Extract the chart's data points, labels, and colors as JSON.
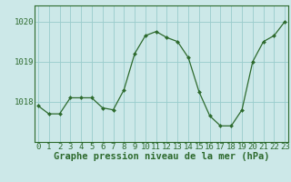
{
  "hours": [
    0,
    1,
    2,
    3,
    4,
    5,
    6,
    7,
    8,
    9,
    10,
    11,
    12,
    13,
    14,
    15,
    16,
    17,
    18,
    19,
    20,
    21,
    22,
    23
  ],
  "pressure": [
    1017.9,
    1017.7,
    1017.7,
    1018.1,
    1018.1,
    1018.1,
    1017.85,
    1017.8,
    1018.3,
    1019.2,
    1019.65,
    1019.75,
    1019.6,
    1019.5,
    1019.1,
    1018.25,
    1017.65,
    1017.4,
    1017.4,
    1017.8,
    1019.0,
    1019.5,
    1019.65,
    1020.0
  ],
  "line_color": "#2d6a2d",
  "marker": "D",
  "marker_size": 2.0,
  "bg_color": "#cce8e8",
  "grid_color": "#99cccc",
  "ylabel_ticks": [
    1018,
    1019,
    1020
  ],
  "xlabel_label": "Graphe pression niveau de la mer (hPa)",
  "ylim": [
    1017.0,
    1020.4
  ],
  "xlim": [
    -0.3,
    23.3
  ],
  "label_fontsize": 7.5,
  "tick_fontsize": 6.5
}
